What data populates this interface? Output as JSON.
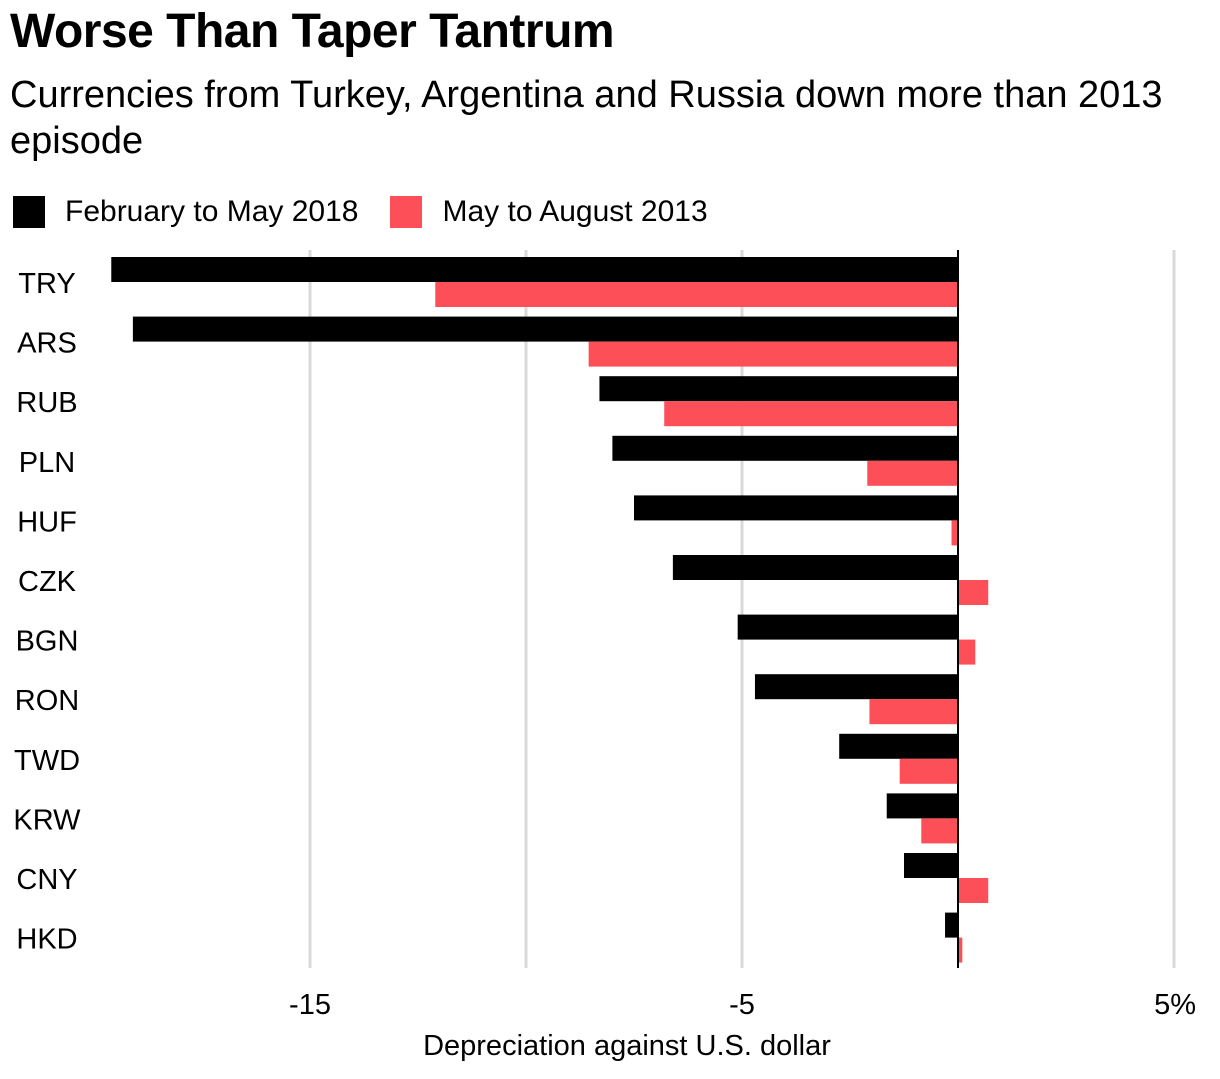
{
  "title": "Worse Than Taper Tantrum",
  "subtitle": "Currencies from Turkey, Argentina and Russia down more than 2013 episode",
  "colors": {
    "series1": "#000000",
    "series2": "#fc4f58",
    "grid": "#d9d9d9",
    "zero_line": "#000000"
  },
  "chart_data": {
    "type": "bar",
    "orientation": "horizontal",
    "categories": [
      "TRY",
      "ARS",
      "RUB",
      "PLN",
      "HUF",
      "CZK",
      "BGN",
      "RON",
      "TWD",
      "KRW",
      "CNY",
      "HKD"
    ],
    "series": [
      {
        "name": "February to May 2018",
        "color": "#000000",
        "values": [
          -19.6,
          -19.1,
          -8.3,
          -8.0,
          -7.5,
          -6.6,
          -5.1,
          -4.7,
          -2.75,
          -1.65,
          -1.25,
          -0.3
        ]
      },
      {
        "name": "May to August 2013",
        "color": "#fc4f58",
        "values": [
          -12.1,
          -8.55,
          -6.8,
          -2.1,
          -0.15,
          0.7,
          0.4,
          -2.05,
          -1.35,
          -0.85,
          0.7,
          0.1
        ]
      }
    ],
    "xlabel": "Depreciation against U.S. dollar",
    "xticks": [
      {
        "value": -15,
        "label": "-15"
      },
      {
        "value": -5,
        "label": "-5"
      },
      {
        "value": 5,
        "label": "5%"
      }
    ],
    "gridlines": [
      -15,
      -10,
      -5,
      5
    ],
    "xlim": [
      -20,
      5
    ],
    "grid": true,
    "legend_position": "top-left"
  }
}
